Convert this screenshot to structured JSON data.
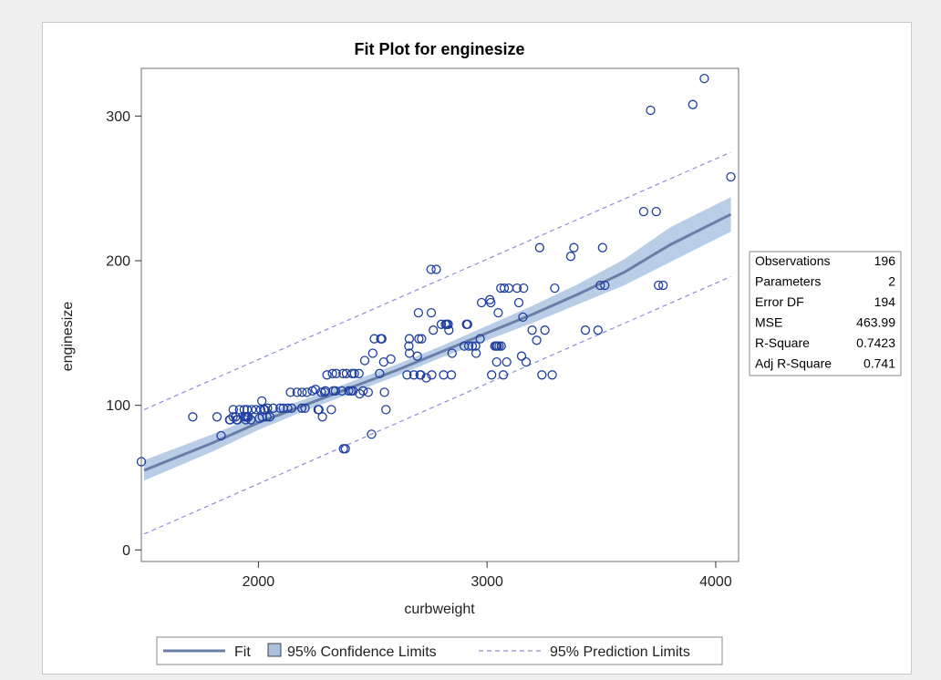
{
  "chart_data": {
    "type": "scatter",
    "title": "Fit Plot for enginesize",
    "xlabel": "curbweight",
    "ylabel": "enginesize",
    "xlim": [
      1488,
      4100
    ],
    "ylim": [
      -8,
      333
    ],
    "xticks": [
      2000,
      3000,
      4000
    ],
    "yticks": [
      0,
      100,
      200,
      300
    ],
    "grid": false,
    "colors": {
      "points": "#1f3f9e",
      "fit": "#6a7fa6",
      "confidence_band": "#a9c1e0",
      "prediction": "#8a8fd6"
    },
    "fit": {
      "name": "Fit",
      "x": [
        1500,
        1800,
        2000,
        2200,
        2400,
        2600,
        2800,
        3000,
        3200,
        3400,
        3600,
        3800,
        4066
      ],
      "y": [
        55,
        74,
        88,
        100,
        112,
        124,
        137,
        150,
        163,
        177,
        192,
        211,
        232
      ]
    },
    "confidence": {
      "name": "95% Confidence Limits",
      "lower": [
        48,
        68,
        83,
        96,
        108,
        120,
        133,
        145,
        157,
        170,
        183,
        199,
        220
      ],
      "upper": [
        62,
        80,
        93,
        104,
        116,
        128,
        141,
        155,
        169,
        184,
        201,
        223,
        244
      ]
    },
    "prediction": {
      "name": "95% Prediction Limits",
      "x": [
        1500,
        4066
      ],
      "lower": [
        11,
        189
      ],
      "upper": [
        97,
        275
      ]
    },
    "points": [
      [
        1488,
        61
      ],
      [
        1713,
        92
      ],
      [
        1819,
        92
      ],
      [
        1837,
        79
      ],
      [
        1874,
        90
      ],
      [
        1876,
        90
      ],
      [
        1889,
        92
      ],
      [
        1890,
        97
      ],
      [
        1900,
        92
      ],
      [
        1905,
        90
      ],
      [
        1909,
        90
      ],
      [
        1918,
        97
      ],
      [
        1938,
        97
      ],
      [
        1940,
        92
      ],
      [
        1944,
        92
      ],
      [
        1945,
        90
      ],
      [
        1950,
        92
      ],
      [
        1951,
        97
      ],
      [
        1956,
        92
      ],
      [
        1967,
        90
      ],
      [
        1971,
        97
      ],
      [
        1989,
        97
      ],
      [
        2004,
        91
      ],
      [
        2010,
        97
      ],
      [
        2015,
        103
      ],
      [
        2017,
        92
      ],
      [
        2024,
        97
      ],
      [
        2028,
        97
      ],
      [
        2037,
        92
      ],
      [
        2040,
        98
      ],
      [
        2050,
        92
      ],
      [
        2065,
        98
      ],
      [
        2095,
        98
      ],
      [
        2109,
        98
      ],
      [
        2128,
        98
      ],
      [
        2140,
        109
      ],
      [
        2145,
        98
      ],
      [
        2169,
        109
      ],
      [
        2190,
        98
      ],
      [
        2191,
        109
      ],
      [
        2204,
        98
      ],
      [
        2212,
        109
      ],
      [
        2236,
        110
      ],
      [
        2250,
        111
      ],
      [
        2261,
        97
      ],
      [
        2265,
        97
      ],
      [
        2275,
        109
      ],
      [
        2280,
        92
      ],
      [
        2290,
        109
      ],
      [
        2293,
        110
      ],
      [
        2300,
        121
      ],
      [
        2319,
        97
      ],
      [
        2324,
        122
      ],
      [
        2328,
        110
      ],
      [
        2337,
        110
      ],
      [
        2340,
        122
      ],
      [
        2365,
        110
      ],
      [
        2370,
        122
      ],
      [
        2372,
        70
      ],
      [
        2380,
        70
      ],
      [
        2385,
        122
      ],
      [
        2395,
        110
      ],
      [
        2405,
        110
      ],
      [
        2410,
        122
      ],
      [
        2414,
        110
      ],
      [
        2420,
        122
      ],
      [
        2440,
        122
      ],
      [
        2443,
        108
      ],
      [
        2458,
        110
      ],
      [
        2465,
        131
      ],
      [
        2480,
        109
      ],
      [
        2495,
        80
      ],
      [
        2500,
        136
      ],
      [
        2507,
        146
      ],
      [
        2530,
        122
      ],
      [
        2535,
        146
      ],
      [
        2540,
        146
      ],
      [
        2548,
        130
      ],
      [
        2551,
        109
      ],
      [
        2558,
        97
      ],
      [
        2579,
        132
      ],
      [
        2650,
        121
      ],
      [
        2658,
        141
      ],
      [
        2660,
        146
      ],
      [
        2661,
        136
      ],
      [
        2680,
        121
      ],
      [
        2695,
        134
      ],
      [
        2700,
        164
      ],
      [
        2702,
        146
      ],
      [
        2707,
        121
      ],
      [
        2710,
        121
      ],
      [
        2714,
        146
      ],
      [
        2734,
        119
      ],
      [
        2755,
        194
      ],
      [
        2756,
        164
      ],
      [
        2758,
        121
      ],
      [
        2765,
        152
      ],
      [
        2778,
        194
      ],
      [
        2800,
        156
      ],
      [
        2810,
        121
      ],
      [
        2818,
        156
      ],
      [
        2824,
        156
      ],
      [
        2830,
        156
      ],
      [
        2833,
        152
      ],
      [
        2844,
        121
      ],
      [
        2847,
        136
      ],
      [
        2900,
        141
      ],
      [
        2910,
        156
      ],
      [
        2915,
        156
      ],
      [
        2920,
        141
      ],
      [
        2935,
        141
      ],
      [
        2950,
        141
      ],
      [
        2952,
        136
      ],
      [
        2970,
        146
      ],
      [
        2976,
        171
      ],
      [
        3012,
        173
      ],
      [
        3016,
        171
      ],
      [
        3020,
        121
      ],
      [
        3034,
        141
      ],
      [
        3040,
        141
      ],
      [
        3042,
        130
      ],
      [
        3045,
        141
      ],
      [
        3049,
        164
      ],
      [
        3053,
        141
      ],
      [
        3060,
        181
      ],
      [
        3062,
        141
      ],
      [
        3071,
        121
      ],
      [
        3075,
        181
      ],
      [
        3086,
        130
      ],
      [
        3095,
        181
      ],
      [
        3131,
        181
      ],
      [
        3139,
        171
      ],
      [
        3151,
        134
      ],
      [
        3157,
        161
      ],
      [
        3160,
        181
      ],
      [
        3171,
        130
      ],
      [
        3197,
        152
      ],
      [
        3217,
        145
      ],
      [
        3230,
        209
      ],
      [
        3240,
        121
      ],
      [
        3253,
        152
      ],
      [
        3285,
        121
      ],
      [
        3296,
        181
      ],
      [
        3366,
        203
      ],
      [
        3380,
        209
      ],
      [
        3430,
        152
      ],
      [
        3485,
        152
      ],
      [
        3495,
        183
      ],
      [
        3505,
        209
      ],
      [
        3515,
        183
      ],
      [
        3685,
        234
      ],
      [
        3715,
        304
      ],
      [
        3740,
        234
      ],
      [
        3750,
        183
      ],
      [
        3770,
        183
      ],
      [
        3900,
        308
      ],
      [
        3950,
        326
      ],
      [
        4066,
        258
      ]
    ],
    "stats": [
      {
        "label": "Observations",
        "value": "196"
      },
      {
        "label": "Parameters",
        "value": "2"
      },
      {
        "label": "Error DF",
        "value": "194"
      },
      {
        "label": "MSE",
        "value": "463.99"
      },
      {
        "label": "R-Square",
        "value": "0.7423"
      },
      {
        "label": "Adj R-Square",
        "value": "0.741"
      }
    ],
    "legend": {
      "placement": "bottom",
      "items": [
        {
          "key": "fit",
          "label": "Fit"
        },
        {
          "key": "confidence",
          "label": "95% Confidence Limits"
        },
        {
          "key": "prediction",
          "label": "95% Prediction Limits"
        }
      ]
    }
  }
}
